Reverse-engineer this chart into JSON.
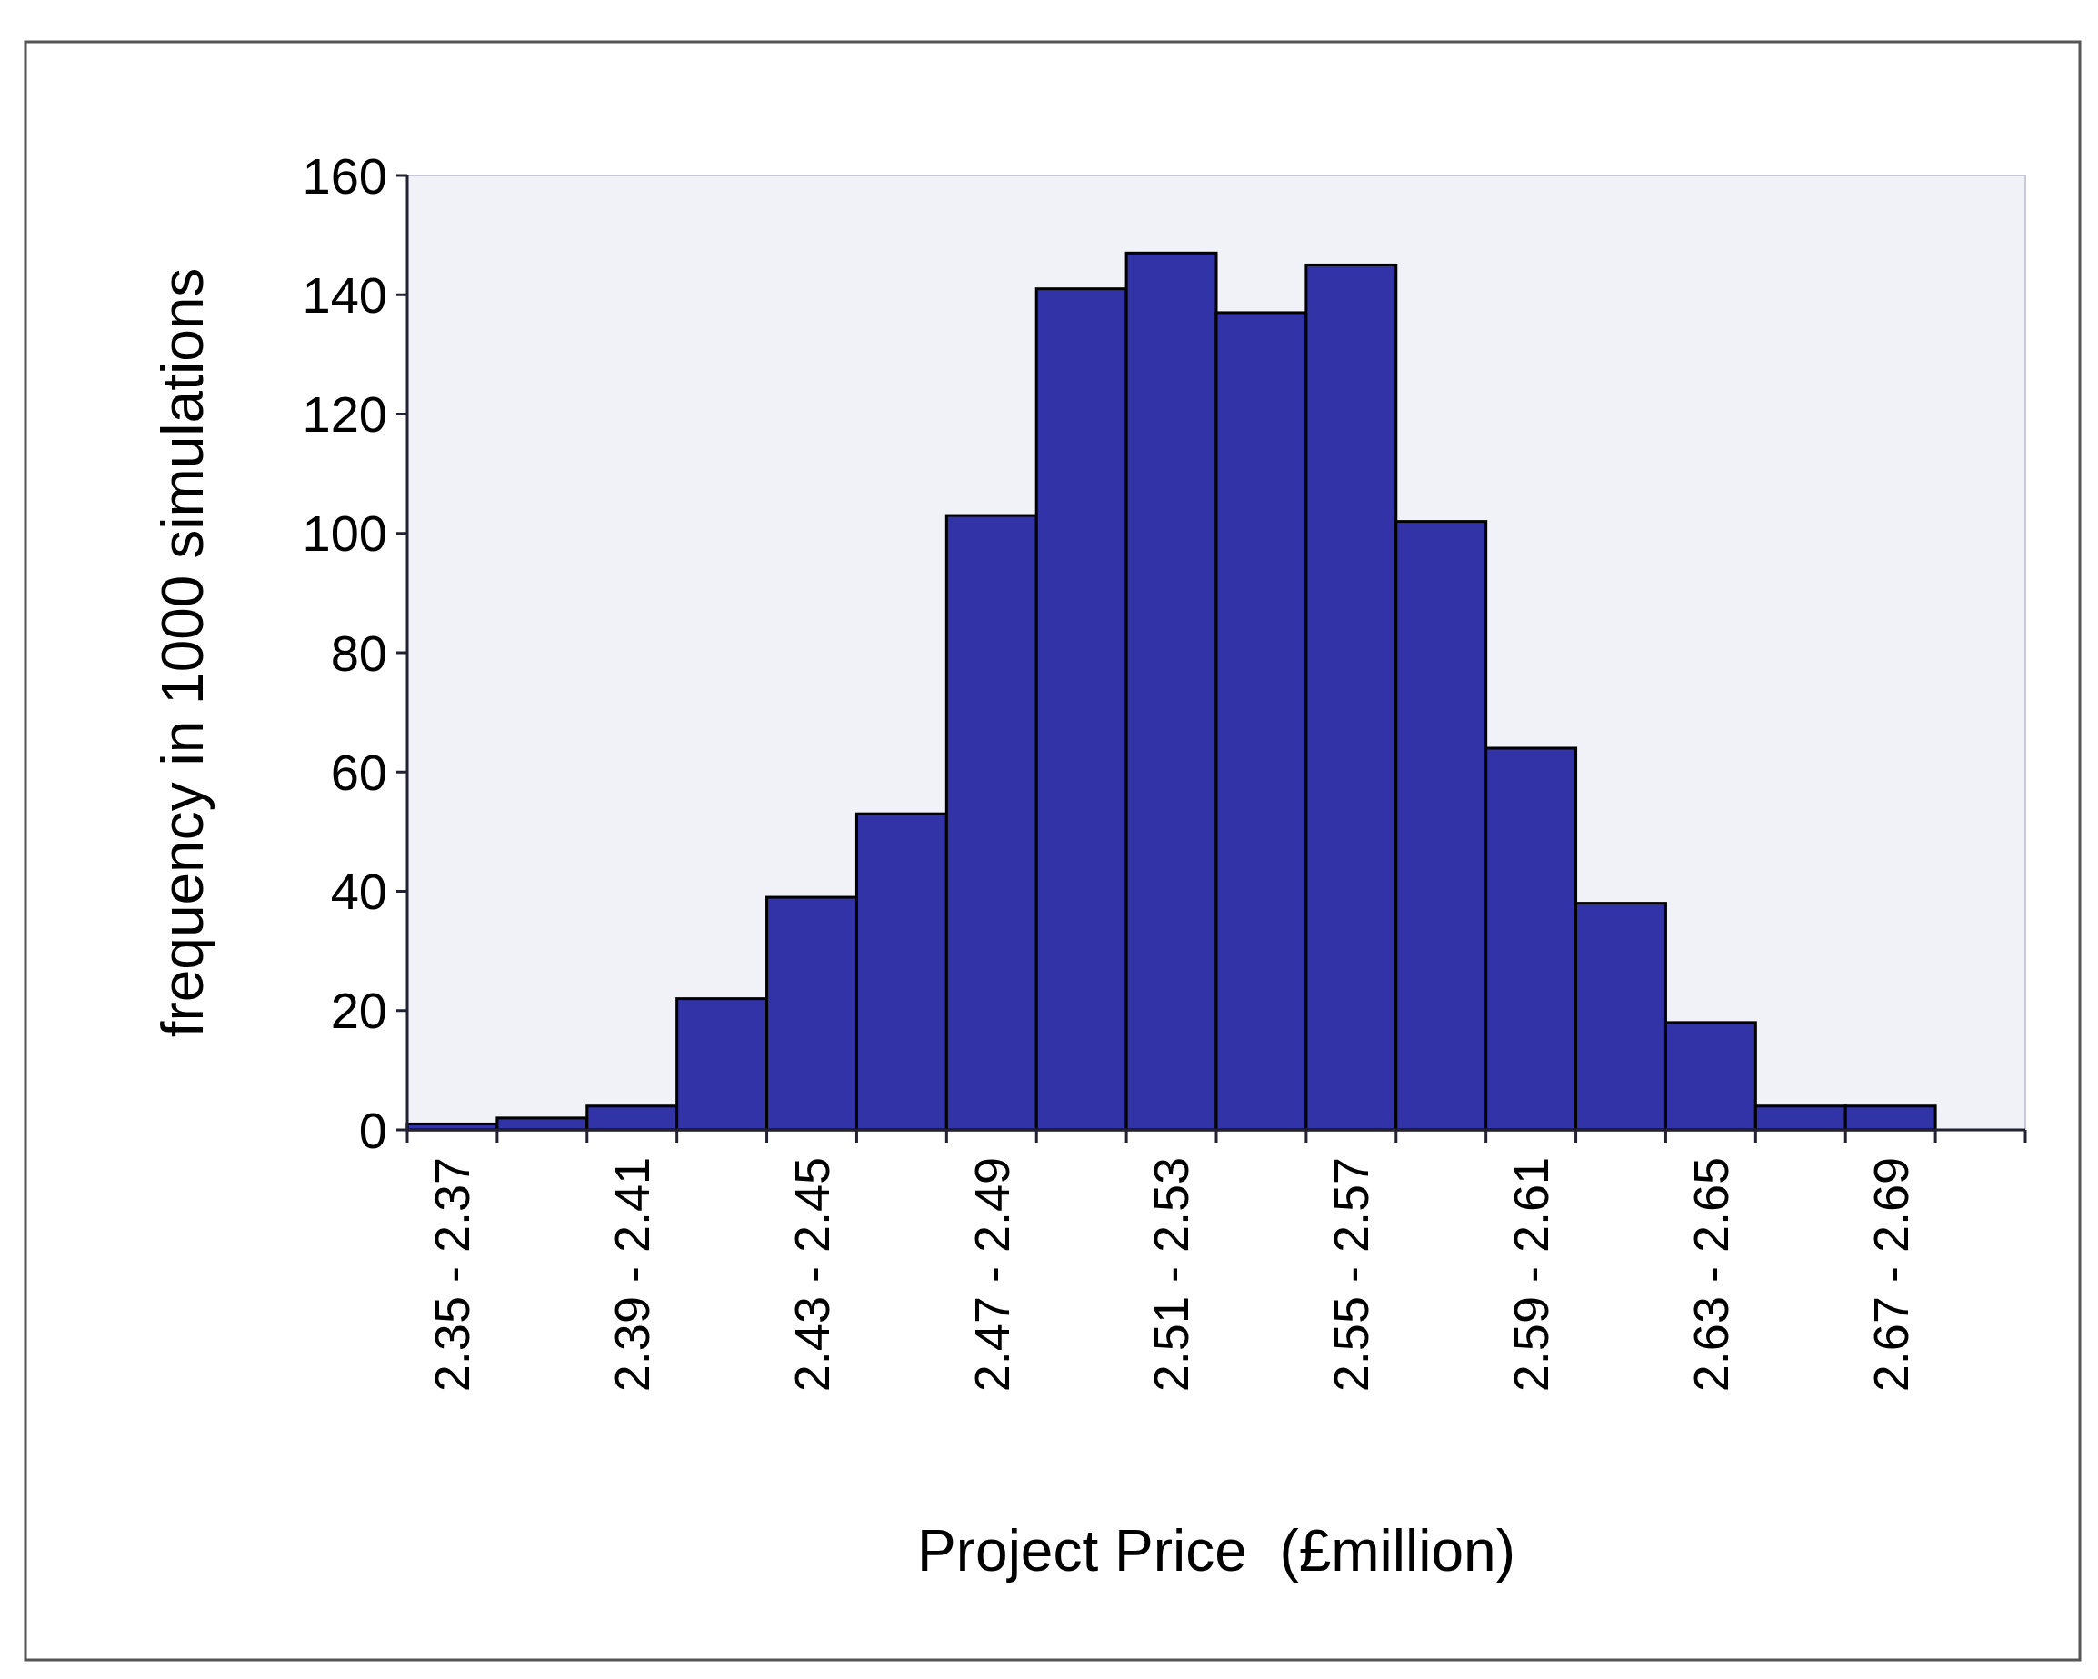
{
  "chart_data": {
    "type": "bar",
    "xlabel": "Project Price  (£million)",
    "ylabel": "frequency in 1000 simulations",
    "categories": [
      "2.35 - 2.37",
      null,
      "2.39 - 2.41",
      null,
      "2.43 - 2.45",
      null,
      "2.47 - 2.49",
      null,
      "2.51 - 2.53",
      null,
      "2.55 - 2.57",
      null,
      "2.59 - 2.61",
      null,
      "2.63 - 2.65",
      null,
      "2.67 - 2.69",
      null
    ],
    "values": [
      1,
      2,
      4,
      22,
      39,
      53,
      103,
      141,
      147,
      137,
      145,
      102,
      64,
      38,
      18,
      4,
      4,
      0
    ],
    "color": "#3333a8",
    "ylim": [
      0,
      160
    ],
    "yticks": [
      0,
      20,
      40,
      60,
      80,
      100,
      120,
      140,
      160
    ],
    "grid": false
  }
}
